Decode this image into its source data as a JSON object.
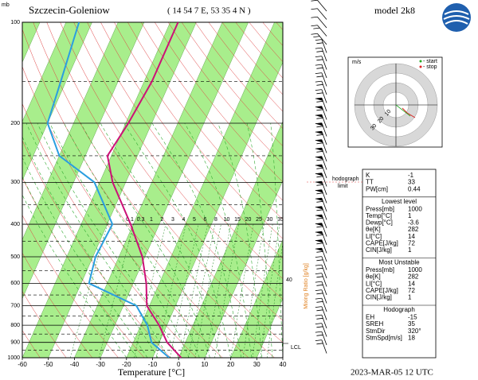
{
  "chart_data": {
    "type": "skewt",
    "title": "Szczecin-Goleniow",
    "subtitle": "( 14 54 7 E, 53 35 4 N )",
    "x_label": "Temperature [°C]",
    "y_unit": "mb",
    "ylog": true,
    "xlim": [
      -60,
      40
    ],
    "xticks": [
      -60,
      -50,
      -40,
      -30,
      -20,
      -10,
      0,
      10,
      20,
      30,
      40
    ],
    "ylim": [
      1000,
      100
    ],
    "yticks": [
      100,
      200,
      300,
      400,
      500,
      600,
      700,
      800,
      900,
      1000
    ],
    "levels": [
      1000,
      900,
      800,
      700,
      600,
      500,
      400,
      300,
      250,
      200,
      150,
      100
    ],
    "series": [
      {
        "color": "#cc1177",
        "values": [
          1,
          -7,
          -13,
          -21,
          -25,
          -31,
          -41,
          -55,
          -61.5,
          -59,
          -57,
          -57
        ]
      },
      {
        "color": "#2a9ee0",
        "values": [
          -3.6,
          -13,
          -17.5,
          -25,
          -47,
          -49,
          -48,
          -62,
          -80,
          -90,
          -92,
          -95
        ]
      }
    ],
    "mixing_ratio": [
      0.1,
      0.3,
      1,
      2,
      3,
      4,
      5,
      6,
      8,
      10,
      15,
      20,
      25,
      30,
      35
    ],
    "mixing_ratio_label": "Mixing Ratio [g/kg]"
  },
  "model": "model 2k8",
  "date": "2023-MAR-05    12 UTC",
  "annotations": {
    "lcl": "LCL",
    "forty": "40",
    "hodograph_limit": [
      "hodograph",
      "limit"
    ]
  },
  "hodograph": {
    "unit": "m/s",
    "rings": [
      "10",
      "20",
      "30"
    ],
    "start": "- start",
    "stop": "- stop"
  },
  "info": [
    {
      "rows": [
        [
          "K",
          "-1"
        ],
        [
          "TT",
          "33"
        ],
        [
          "PW[cm]",
          "0.44"
        ]
      ]
    },
    {
      "heading": "Lowest level",
      "rows": [
        [
          "Press[mb]",
          "1000"
        ],
        [
          "Temp[°C]",
          "1"
        ],
        [
          "Dewp[°C]",
          "-3.6"
        ],
        [
          "θe[K]",
          "282"
        ],
        [
          "LI[°C]",
          "14"
        ],
        [
          "CAPE[J/kg]",
          "72"
        ],
        [
          "CIN[J/kg]",
          "1"
        ]
      ]
    },
    {
      "heading": "Most Unstable",
      "rows": [
        [
          "Press[mb]",
          "1000"
        ],
        [
          "θe[K]",
          "282"
        ],
        [
          "LI[°C]",
          "14"
        ],
        [
          "CAPE[J/kg]",
          "72"
        ],
        [
          "CIN[J/kg]",
          "1"
        ]
      ]
    },
    {
      "heading": "Hodograph",
      "rows": [
        [
          "EH",
          "-15"
        ],
        [
          "SREH",
          "35"
        ],
        [
          "StmDir",
          "320°"
        ],
        [
          "StmSpd[m/s]",
          "18"
        ]
      ]
    }
  ]
}
